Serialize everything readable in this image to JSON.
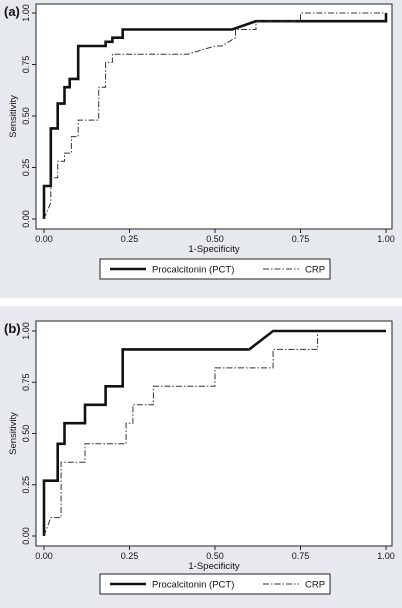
{
  "chart_data": [
    {
      "type": "line",
      "panel_label": "(a)",
      "xlabel": "1-Specificity",
      "ylabel": "Sensitivity",
      "xlim": [
        0,
        1
      ],
      "ylim": [
        0,
        1
      ],
      "x_ticks": [
        0,
        0.25,
        0.5,
        0.75,
        1
      ],
      "x_tick_labels": [
        "0.00",
        "0.25",
        "0.50",
        "0.75",
        "1.00"
      ],
      "y_ticks": [
        0,
        0.25,
        0.5,
        0.75,
        1
      ],
      "y_tick_labels": [
        "0.00",
        "0.25",
        "0.50",
        "0.75",
        "1.00"
      ],
      "grid": false,
      "legend_position": "bottom",
      "series": [
        {
          "name": "Procalcitonin (PCT)",
          "style": "solid-thick",
          "color": "#111111",
          "x": [
            0,
            0,
            0.02,
            0.02,
            0.04,
            0.04,
            0.06,
            0.06,
            0.075,
            0.075,
            0.1,
            0.1,
            0.18,
            0.18,
            0.2,
            0.2,
            0.23,
            0.23,
            0.55,
            0.62,
            0.62,
            1,
            1
          ],
          "y": [
            0,
            0.16,
            0.16,
            0.44,
            0.44,
            0.56,
            0.56,
            0.64,
            0.64,
            0.68,
            0.68,
            0.84,
            0.84,
            0.86,
            0.86,
            0.88,
            0.88,
            0.92,
            0.92,
            0.96,
            0.96,
            0.96,
            1
          ]
        },
        {
          "name": "CRP",
          "style": "dash-dot",
          "color": "#333333",
          "x": [
            0,
            0.02,
            0.02,
            0.04,
            0.04,
            0.06,
            0.06,
            0.08,
            0.08,
            0.1,
            0.1,
            0.16,
            0.16,
            0.18,
            0.18,
            0.2,
            0.2,
            0.42,
            0.5,
            0.52,
            0.56,
            0.56,
            0.62,
            0.62,
            0.75,
            0.75,
            1,
            1
          ],
          "y": [
            0,
            0.08,
            0.2,
            0.2,
            0.28,
            0.28,
            0.32,
            0.32,
            0.4,
            0.4,
            0.48,
            0.48,
            0.64,
            0.64,
            0.76,
            0.76,
            0.8,
            0.8,
            0.84,
            0.84,
            0.88,
            0.92,
            0.92,
            0.96,
            0.96,
            1,
            1,
            1
          ]
        }
      ]
    },
    {
      "type": "line",
      "panel_label": "(b)",
      "xlabel": "1-Specificity",
      "ylabel": "Sensitivity",
      "xlim": [
        0,
        1
      ],
      "ylim": [
        0,
        1
      ],
      "x_ticks": [
        0,
        0.25,
        0.5,
        0.75,
        1
      ],
      "x_tick_labels": [
        "0.00",
        "0.25",
        "0.50",
        "0.75",
        "1.00"
      ],
      "y_ticks": [
        0,
        0.25,
        0.5,
        0.75,
        1
      ],
      "y_tick_labels": [
        "0.00",
        "0.25",
        "0.50",
        "0.75",
        "1.00"
      ],
      "grid": false,
      "legend_position": "bottom",
      "series": [
        {
          "name": "Procalcitonin (PCT)",
          "style": "solid-thick",
          "color": "#111111",
          "x": [
            0,
            0,
            0.04,
            0.04,
            0.06,
            0.06,
            0.12,
            0.12,
            0.18,
            0.18,
            0.23,
            0.23,
            0.6,
            0.67,
            0.67,
            1
          ],
          "y": [
            0,
            0.27,
            0.27,
            0.45,
            0.45,
            0.55,
            0.55,
            0.64,
            0.64,
            0.73,
            0.73,
            0.91,
            0.91,
            1,
            1,
            1
          ]
        },
        {
          "name": "CRP",
          "style": "dash-dot",
          "color": "#333333",
          "x": [
            0,
            0.02,
            0.02,
            0.05,
            0.05,
            0.12,
            0.12,
            0.24,
            0.24,
            0.26,
            0.26,
            0.32,
            0.32,
            0.5,
            0.5,
            0.6,
            0.67,
            0.67,
            0.8,
            0.8
          ],
          "y": [
            0,
            0.09,
            0.09,
            0.09,
            0.36,
            0.36,
            0.45,
            0.45,
            0.55,
            0.55,
            0.64,
            0.64,
            0.73,
            0.73,
            0.82,
            0.82,
            0.82,
            0.91,
            0.91,
            1
          ]
        }
      ]
    }
  ]
}
